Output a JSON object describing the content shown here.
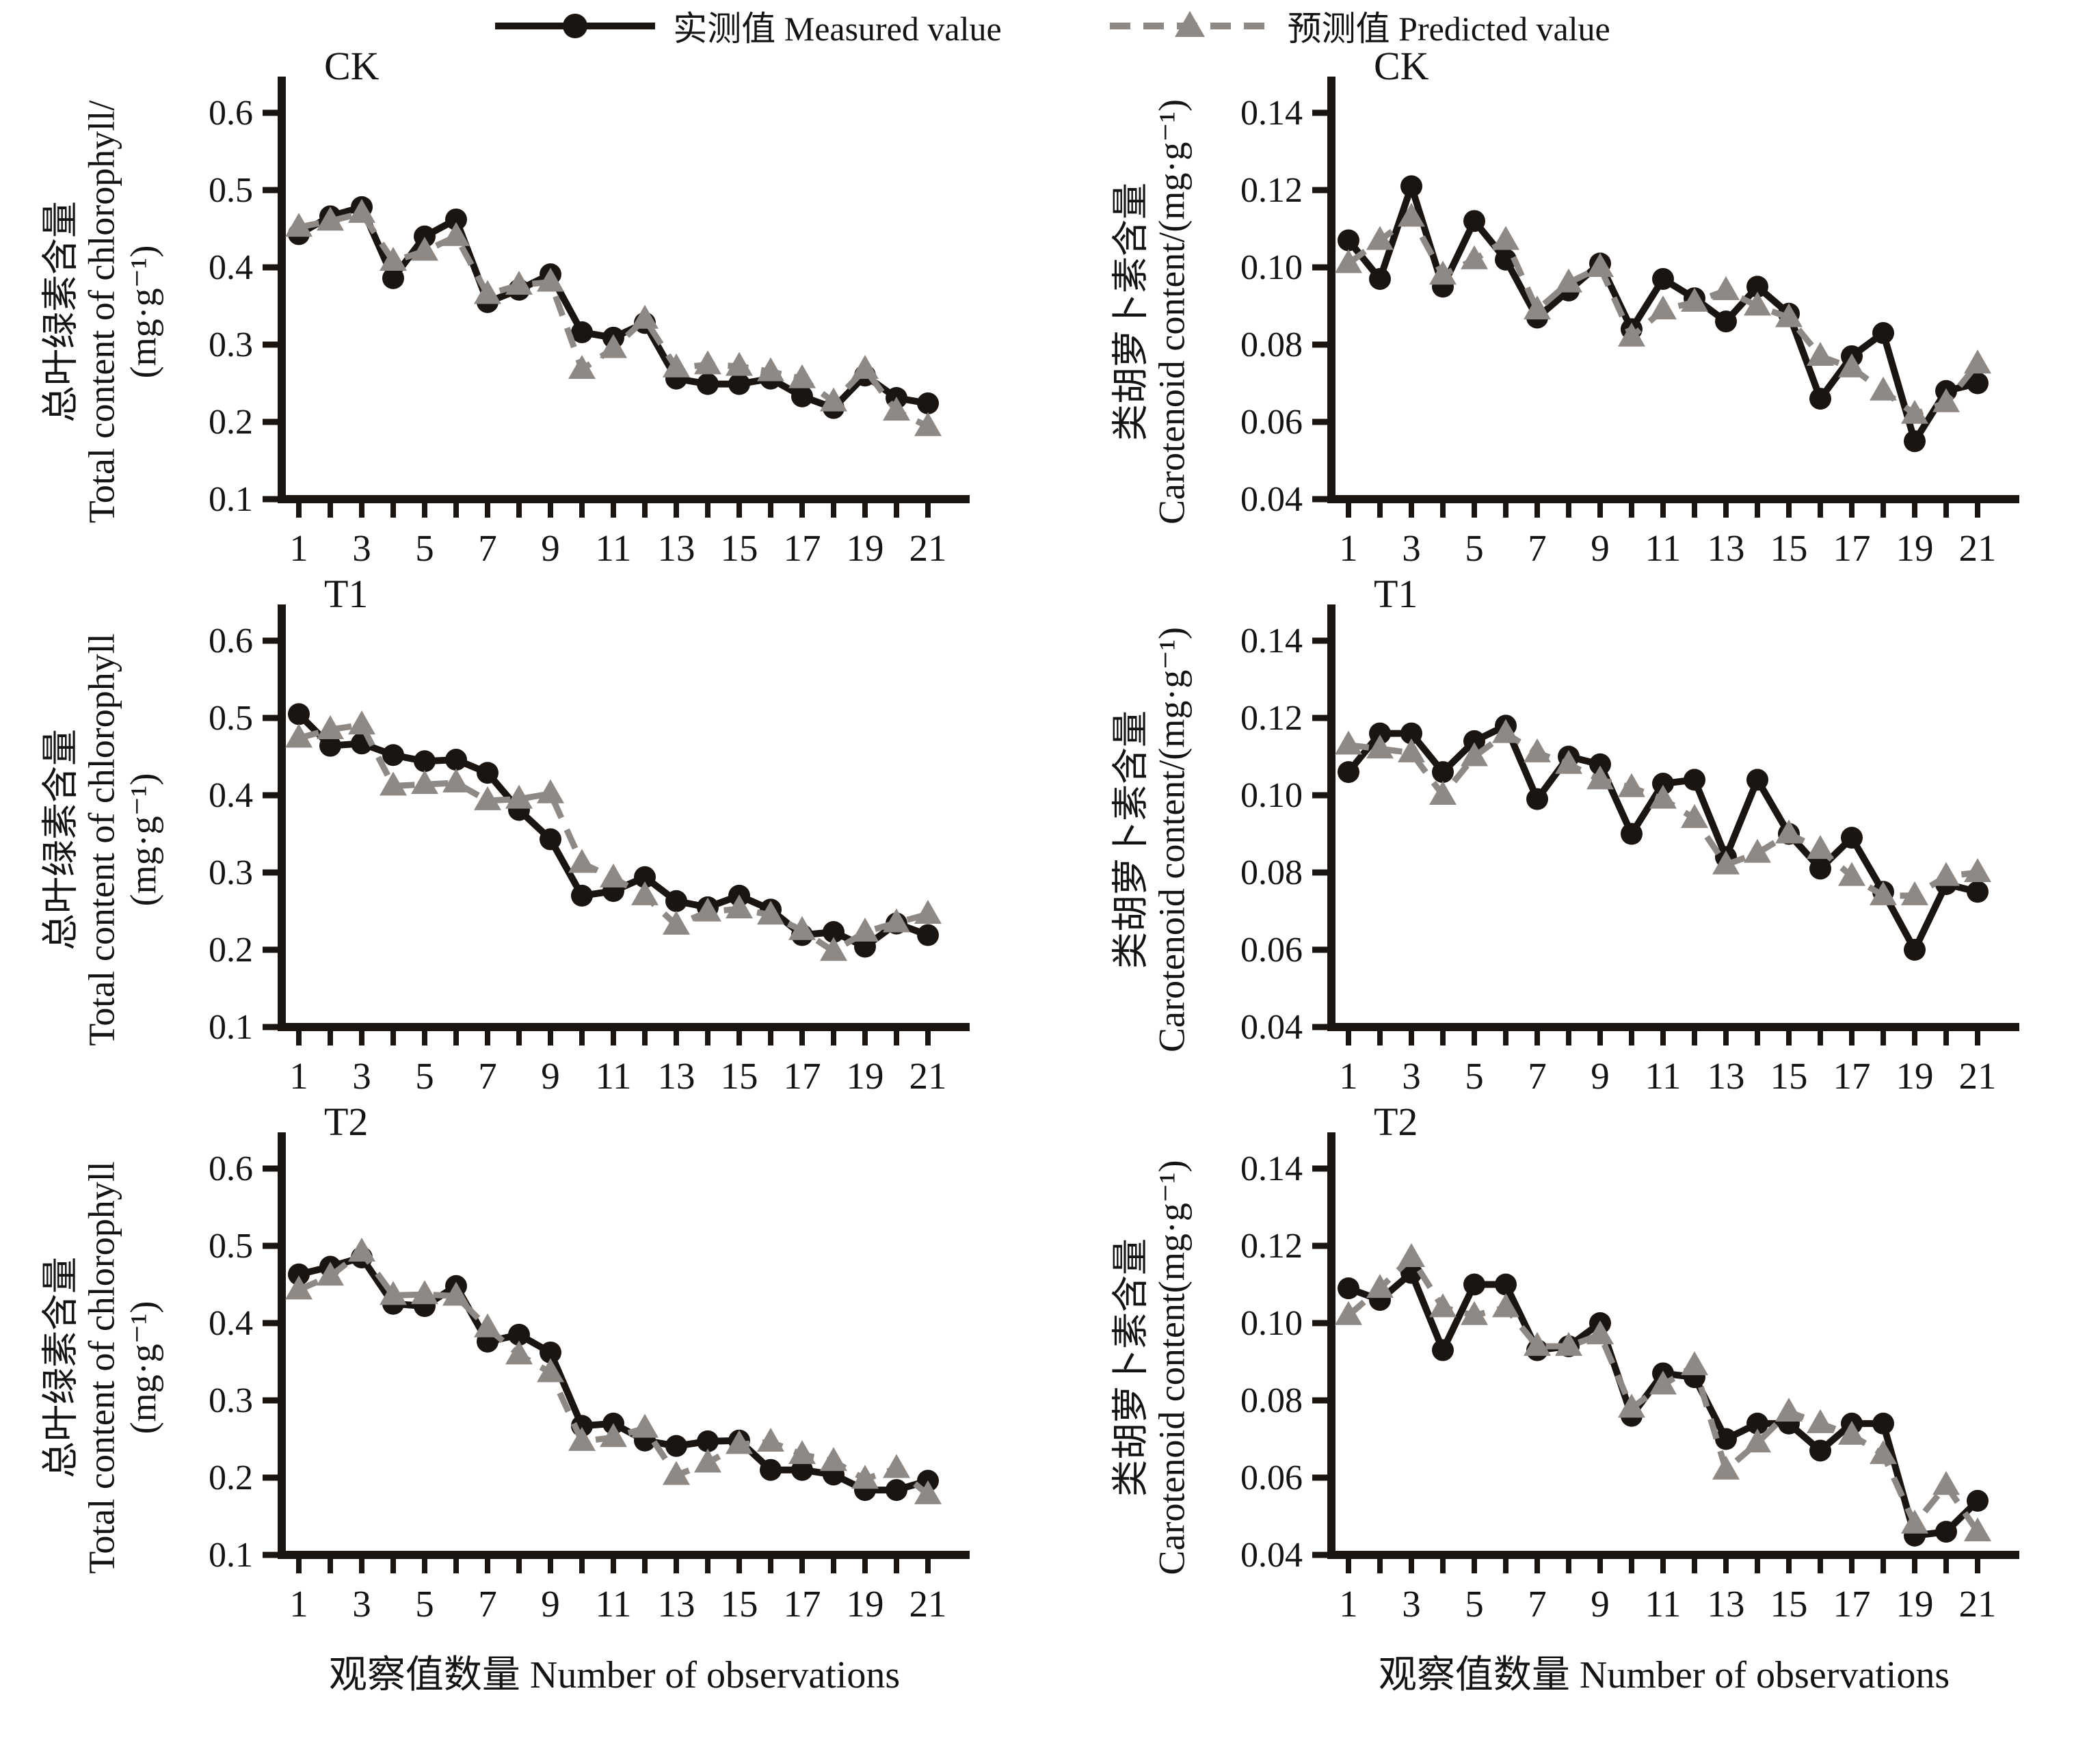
{
  "legend": {
    "measured_label": "实测值 Measured value",
    "predicted_label": "预测值 Predicted value"
  },
  "x_caption": "观察值数量 Number of observations",
  "series_style": {
    "measured_color": "#1b1512",
    "predicted_color": "#8f8985",
    "axis_color": "#1b1512"
  },
  "chart_data": [
    {
      "type": "line",
      "title": "CK",
      "ylabel_cn": "总叶绿素含量",
      "ylabel_en": "Total content of chlorophyll/",
      "ylabel_unit": "(mg·g⁻¹)",
      "xlabel": "观察值数量 Number of observations",
      "ylim": [
        0.1,
        0.6
      ],
      "yticks": [
        0.6,
        0.5,
        0.4,
        0.3,
        0.2,
        0.1
      ],
      "ytick_labels": [
        "0.6",
        "0.5",
        "0.4",
        "0.3",
        "0.2",
        "0.1"
      ],
      "x": [
        1,
        2,
        3,
        4,
        5,
        6,
        7,
        8,
        9,
        10,
        11,
        12,
        13,
        14,
        15,
        16,
        17,
        18,
        19,
        20,
        21
      ],
      "xtick_labels": [
        "1",
        "3",
        "5",
        "7",
        "9",
        "11",
        "13",
        "15",
        "17",
        "19",
        "21"
      ],
      "legend_position": "top",
      "grid": false,
      "series": [
        {
          "name": "实测值 Measured value",
          "marker": "circle",
          "line": "solid",
          "values": [
            0.443,
            0.466,
            0.478,
            0.386,
            0.44,
            0.462,
            0.355,
            0.371,
            0.391,
            0.316,
            0.309,
            0.328,
            0.256,
            0.249,
            0.249,
            0.256,
            0.233,
            0.218,
            0.26,
            0.231,
            0.224
          ]
        },
        {
          "name": "预测值 Predicted value",
          "marker": "triangle",
          "line": "dashed",
          "values": [
            0.452,
            0.46,
            0.47,
            0.408,
            0.421,
            0.44,
            0.365,
            0.377,
            0.381,
            0.268,
            0.295,
            0.333,
            0.27,
            0.274,
            0.272,
            0.265,
            0.256,
            0.226,
            0.268,
            0.214,
            0.194
          ]
        }
      ]
    },
    {
      "type": "line",
      "title": "CK",
      "ylabel_cn": "类胡萝卜素含量",
      "ylabel_en": "Carotenoid content/(mg·g⁻¹)",
      "ylabel_unit": "",
      "xlabel": "观察值数量 Number of observations",
      "ylim": [
        0.04,
        0.14
      ],
      "yticks": [
        0.14,
        0.12,
        0.1,
        0.08,
        0.06,
        0.04
      ],
      "ytick_labels": [
        "0.14",
        "0.12",
        "0.10",
        "0.08",
        "0.06",
        "0.04"
      ],
      "x": [
        1,
        2,
        3,
        4,
        5,
        6,
        7,
        8,
        9,
        10,
        11,
        12,
        13,
        14,
        15,
        16,
        17,
        18,
        19,
        20,
        21
      ],
      "xtick_labels": [
        "1",
        "3",
        "5",
        "7",
        "9",
        "11",
        "13",
        "15",
        "17",
        "19",
        "21"
      ],
      "legend_position": "top",
      "grid": false,
      "series": [
        {
          "name": "实测值 Measured value",
          "marker": "circle",
          "line": "solid",
          "values": [
            0.107,
            0.097,
            0.121,
            0.095,
            0.112,
            0.102,
            0.087,
            0.094,
            0.101,
            0.084,
            0.097,
            0.092,
            0.086,
            0.095,
            0.088,
            0.066,
            0.077,
            0.083,
            0.055,
            0.068,
            0.07
          ]
        },
        {
          "name": "预测值 Predicted value",
          "marker": "triangle",
          "line": "dashed",
          "values": [
            0.101,
            0.107,
            0.113,
            0.098,
            0.102,
            0.107,
            0.089,
            0.096,
            0.1,
            0.082,
            0.089,
            0.091,
            0.094,
            0.09,
            0.087,
            0.077,
            0.074,
            0.068,
            0.062,
            0.065,
            0.075
          ]
        }
      ]
    },
    {
      "type": "line",
      "title": "T1",
      "ylabel_cn": "总叶绿素含量",
      "ylabel_en": "Total content of chlorophyll",
      "ylabel_unit": "(mg·g⁻¹)",
      "xlabel": "观察值数量 Number of observations",
      "ylim": [
        0.1,
        0.6
      ],
      "yticks": [
        0.6,
        0.5,
        0.4,
        0.3,
        0.2,
        0.1
      ],
      "ytick_labels": [
        "0.6",
        "0.5",
        "0.4",
        "0.3",
        "0.2",
        "0.1"
      ],
      "x": [
        1,
        2,
        3,
        4,
        5,
        6,
        7,
        8,
        9,
        10,
        11,
        12,
        13,
        14,
        15,
        16,
        17,
        18,
        19,
        20,
        21
      ],
      "xtick_labels": [
        "1",
        "3",
        "5",
        "7",
        "9",
        "11",
        "13",
        "15",
        "17",
        "19",
        "21"
      ],
      "legend_position": "top",
      "grid": false,
      "series": [
        {
          "name": "实测值 Measured value",
          "marker": "circle",
          "line": "solid",
          "values": [
            0.505,
            0.464,
            0.467,
            0.452,
            0.444,
            0.446,
            0.429,
            0.381,
            0.343,
            0.27,
            0.276,
            0.294,
            0.263,
            0.255,
            0.27,
            0.252,
            0.219,
            0.223,
            0.204,
            0.234,
            0.219
          ]
        },
        {
          "name": "预测值 Predicted value",
          "marker": "triangle",
          "line": "dashed",
          "values": [
            0.474,
            0.485,
            0.491,
            0.412,
            0.414,
            0.416,
            0.393,
            0.395,
            0.402,
            0.312,
            0.293,
            0.27,
            0.232,
            0.249,
            0.253,
            0.245,
            0.225,
            0.198,
            0.223,
            0.235,
            0.246
          ]
        }
      ]
    },
    {
      "type": "line",
      "title": "T1",
      "ylabel_cn": "类胡萝卜素含量",
      "ylabel_en": "Carotenoid content/(mg·g⁻¹)",
      "ylabel_unit": "",
      "xlabel": "观察值数量 Number of observations",
      "ylim": [
        0.04,
        0.14
      ],
      "yticks": [
        0.14,
        0.12,
        0.1,
        0.08,
        0.06,
        0.04
      ],
      "ytick_labels": [
        "0.14",
        "0.12",
        "0.10",
        "0.08",
        "0.06",
        "0.04"
      ],
      "x": [
        1,
        2,
        3,
        4,
        5,
        6,
        7,
        8,
        9,
        10,
        11,
        12,
        13,
        14,
        15,
        16,
        17,
        18,
        19,
        20,
        21
      ],
      "xtick_labels": [
        "1",
        "3",
        "5",
        "7",
        "9",
        "11",
        "13",
        "15",
        "17",
        "19",
        "21"
      ],
      "legend_position": "top",
      "grid": false,
      "series": [
        {
          "name": "实测值 Measured value",
          "marker": "circle",
          "line": "solid",
          "values": [
            0.106,
            0.116,
            0.116,
            0.106,
            0.114,
            0.118,
            0.099,
            0.11,
            0.108,
            0.09,
            0.103,
            0.104,
            0.084,
            0.104,
            0.09,
            0.081,
            0.089,
            0.075,
            0.06,
            0.077,
            0.075
          ]
        },
        {
          "name": "预测值 Predicted value",
          "marker": "triangle",
          "line": "dashed",
          "values": [
            0.113,
            0.112,
            0.111,
            0.1,
            0.11,
            0.116,
            0.111,
            0.108,
            0.104,
            0.102,
            0.099,
            0.094,
            0.082,
            0.085,
            0.09,
            0.086,
            0.079,
            0.074,
            0.074,
            0.079,
            0.08
          ]
        }
      ]
    },
    {
      "type": "line",
      "title": "T2",
      "ylabel_cn": "总叶绿素含量",
      "ylabel_en": "Total content of chlorophyll",
      "ylabel_unit": "(mg·g⁻¹)",
      "xlabel": "观察值数量 Number of observations",
      "ylim": [
        0.1,
        0.6
      ],
      "yticks": [
        0.6,
        0.5,
        0.4,
        0.3,
        0.2,
        0.1
      ],
      "ytick_labels": [
        "0.6",
        "0.5",
        "0.4",
        "0.3",
        "0.2",
        "0.1"
      ],
      "x": [
        1,
        2,
        3,
        4,
        5,
        6,
        7,
        8,
        9,
        10,
        11,
        12,
        13,
        14,
        15,
        16,
        17,
        18,
        19,
        20,
        21
      ],
      "xtick_labels": [
        "1",
        "3",
        "5",
        "7",
        "9",
        "11",
        "13",
        "15",
        "17",
        "19",
        "21"
      ],
      "legend_position": "top",
      "grid": false,
      "series": [
        {
          "name": "实测值 Measured value",
          "marker": "circle",
          "line": "solid",
          "values": [
            0.463,
            0.473,
            0.485,
            0.425,
            0.422,
            0.448,
            0.376,
            0.385,
            0.362,
            0.267,
            0.27,
            0.248,
            0.241,
            0.247,
            0.248,
            0.21,
            0.21,
            0.204,
            0.184,
            0.184,
            0.196
          ]
        },
        {
          "name": "预测值 Predicted value",
          "marker": "triangle",
          "line": "dashed",
          "values": [
            0.443,
            0.461,
            0.492,
            0.436,
            0.437,
            0.435,
            0.394,
            0.359,
            0.336,
            0.247,
            0.252,
            0.264,
            0.203,
            0.219,
            0.243,
            0.246,
            0.23,
            0.221,
            0.198,
            0.212,
            0.178
          ]
        }
      ]
    },
    {
      "type": "line",
      "title": "T2",
      "ylabel_cn": "类胡萝卜素含量",
      "ylabel_en": "Carotenoid content(mg·g⁻¹)",
      "ylabel_unit": "",
      "xlabel": "观察值数量 Number of observations",
      "ylim": [
        0.04,
        0.14
      ],
      "yticks": [
        0.14,
        0.12,
        0.1,
        0.08,
        0.06,
        0.04
      ],
      "ytick_labels": [
        "0.14",
        "0.12",
        "0.10",
        "0.08",
        "0.06",
        "0.04"
      ],
      "x": [
        1,
        2,
        3,
        4,
        5,
        6,
        7,
        8,
        9,
        10,
        11,
        12,
        13,
        14,
        15,
        16,
        17,
        18,
        19,
        20,
        21
      ],
      "xtick_labels": [
        "1",
        "3",
        "5",
        "7",
        "9",
        "11",
        "13",
        "15",
        "17",
        "19",
        "21"
      ],
      "legend_position": "top",
      "grid": false,
      "series": [
        {
          "name": "实测值 Measured value",
          "marker": "circle",
          "line": "solid",
          "values": [
            0.109,
            0.106,
            0.113,
            0.093,
            0.11,
            0.11,
            0.093,
            0.094,
            0.1,
            0.076,
            0.087,
            0.086,
            0.07,
            0.074,
            0.074,
            0.067,
            0.074,
            0.074,
            0.045,
            0.046,
            0.054
          ]
        },
        {
          "name": "预测值 Predicted value",
          "marker": "triangle",
          "line": "dashed",
          "values": [
            0.102,
            0.109,
            0.117,
            0.104,
            0.102,
            0.104,
            0.094,
            0.094,
            0.097,
            0.078,
            0.084,
            0.089,
            0.062,
            0.069,
            0.077,
            0.074,
            0.071,
            0.066,
            0.048,
            0.058,
            0.046
          ]
        }
      ]
    }
  ]
}
